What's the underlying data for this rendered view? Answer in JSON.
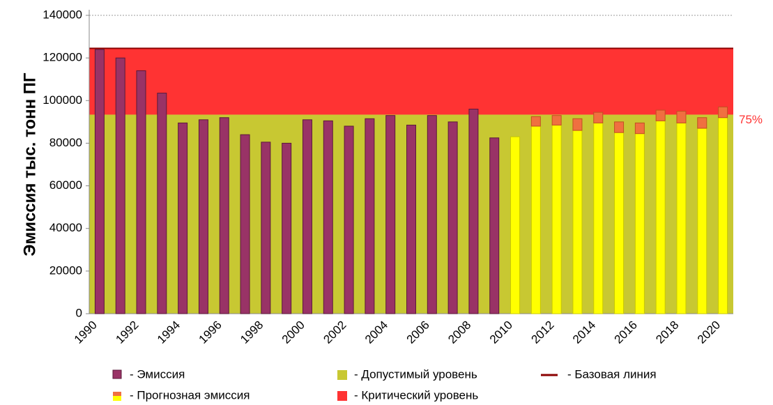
{
  "chart_data": {
    "type": "bar",
    "y_label": "Эмиссия тыс. тонн ПГ",
    "categories": [
      "1990",
      null,
      "1992",
      null,
      "1994",
      null,
      "1996",
      null,
      "1998",
      null,
      "2000",
      null,
      "2002",
      null,
      "2004",
      null,
      "2006",
      null,
      "2008",
      null,
      "2010",
      null,
      "2012",
      null,
      "2014",
      null,
      "2016",
      null,
      "2018",
      null,
      "2020"
    ],
    "series": [
      {
        "name": "- Эмиссия",
        "color": "#993366",
        "values": [
          124000,
          120000,
          114000,
          103500,
          89500,
          91000,
          92000,
          84000,
          80500,
          80000,
          91000,
          90500,
          88000,
          91500,
          93000,
          88500,
          93000,
          90000,
          96000,
          82500,
          null,
          null,
          null,
          null,
          null,
          null,
          null,
          null,
          null,
          null,
          null
        ]
      },
      {
        "name": "- Прогнозная эмиссия",
        "color": "#ffff00",
        "values": [
          null,
          null,
          null,
          null,
          null,
          null,
          null,
          null,
          null,
          null,
          null,
          null,
          null,
          null,
          null,
          null,
          null,
          null,
          null,
          null,
          83000,
          88000,
          88500,
          86000,
          89500,
          85000,
          84500,
          90500,
          89500,
          87000,
          92000
        ],
        "increment": [
          null,
          null,
          null,
          null,
          null,
          null,
          null,
          null,
          null,
          null,
          null,
          null,
          null,
          null,
          null,
          null,
          null,
          null,
          null,
          null,
          0,
          4500,
          4500,
          5500,
          5000,
          5000,
          5000,
          5000,
          5500,
          5000,
          5000
        ],
        "increment_color": "#f07040"
      }
    ],
    "bands": [
      {
        "name": "- Допустимый уровень",
        "color": "#c8c832",
        "from": 0,
        "to": 93400
      },
      {
        "name": "- Критический уровень",
        "color": "#ff3333",
        "from": 93400,
        "to": 124500
      }
    ],
    "baseline": {
      "name": "- Базовая линия",
      "color": "#8b0000",
      "value": 124500
    },
    "annotation": "75%",
    "ylim": [
      0,
      140000
    ],
    "yticks": [
      0,
      20000,
      40000,
      60000,
      80000,
      100000,
      120000,
      140000
    ],
    "grid": true
  }
}
